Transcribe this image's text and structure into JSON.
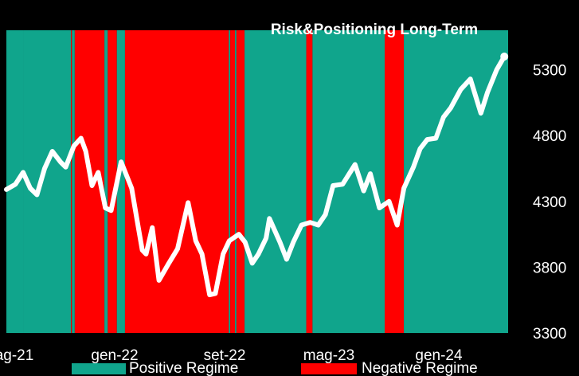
{
  "chart_data": {
    "type": "line",
    "title": "Risk&Positioning Long-Term",
    "x_tick_labels": [
      "ag-21",
      "gen-22",
      "set-22",
      "mag-23",
      "gen-24"
    ],
    "y_ticks": [
      3300,
      3800,
      4300,
      4800,
      5300
    ],
    "ylim": [
      3300,
      5600
    ],
    "xlim": [
      "2021-08-01",
      "2024-06-15"
    ],
    "grid": false,
    "legend_position": "bottom",
    "colors": {
      "positive": "#10a58c",
      "negative": "#ff0000",
      "line": "#ffffff",
      "background": "#000000",
      "page": "#fcefd2"
    },
    "series": [
      {
        "name": "",
        "x": [
          "2021-08-01",
          "2021-08-20",
          "2021-09-05",
          "2021-09-20",
          "2021-10-04",
          "2021-10-20",
          "2021-11-05",
          "2021-11-22",
          "2021-12-03",
          "2021-12-20",
          "2022-01-04",
          "2022-01-14",
          "2022-01-27",
          "2022-02-09",
          "2022-02-24",
          "2022-03-08",
          "2022-03-29",
          "2022-04-20",
          "2022-05-02",
          "2022-05-12",
          "2022-05-20",
          "2022-06-02",
          "2022-06-16",
          "2022-07-05",
          "2022-07-25",
          "2022-08-16",
          "2022-09-01",
          "2022-09-14",
          "2022-09-30",
          "2022-10-12",
          "2022-10-28",
          "2022-11-10",
          "2022-11-30",
          "2022-12-13",
          "2022-12-28",
          "2023-01-10",
          "2023-01-26",
          "2023-02-02",
          "2023-02-24",
          "2023-03-10",
          "2023-03-24",
          "2023-04-10",
          "2023-04-28",
          "2023-05-15",
          "2023-05-30",
          "2023-06-15",
          "2023-07-05",
          "2023-07-31",
          "2023-08-18",
          "2023-09-01",
          "2023-09-20",
          "2023-10-10",
          "2023-10-27",
          "2023-11-10",
          "2023-11-30",
          "2023-12-14",
          "2023-12-29",
          "2024-01-16",
          "2024-02-01",
          "2024-02-16",
          "2024-03-08",
          "2024-03-28",
          "2024-04-19",
          "2024-05-03",
          "2024-05-22",
          "2024-06-07"
        ],
        "values": [
          4390,
          4430,
          4520,
          4400,
          4350,
          4550,
          4680,
          4600,
          4560,
          4720,
          4780,
          4680,
          4420,
          4520,
          4250,
          4230,
          4600,
          4400,
          4140,
          3930,
          3900,
          4100,
          3700,
          3820,
          3940,
          4290,
          4000,
          3900,
          3590,
          3600,
          3900,
          4000,
          4050,
          3990,
          3830,
          3900,
          4020,
          4170,
          3990,
          3860,
          3990,
          4120,
          4140,
          4120,
          4200,
          4420,
          4430,
          4580,
          4380,
          4510,
          4250,
          4300,
          4120,
          4400,
          4560,
          4700,
          4770,
          4780,
          4940,
          5010,
          5150,
          5230,
          4970,
          5130,
          5300,
          5400
        ]
      }
    ],
    "regimes": [
      {
        "start": "2021-08-01",
        "end": "2021-09-05",
        "regime": "positive"
      },
      {
        "start": "2021-09-05",
        "end": "2021-12-14",
        "regime": "positive"
      },
      {
        "start": "2021-12-14",
        "end": "2021-12-16",
        "regime": "negative"
      },
      {
        "start": "2021-12-16",
        "end": "2021-12-22",
        "regime": "positive"
      },
      {
        "start": "2021-12-22",
        "end": "2022-02-22",
        "regime": "negative"
      },
      {
        "start": "2022-02-22",
        "end": "2022-03-01",
        "regime": "positive"
      },
      {
        "start": "2022-03-01",
        "end": "2022-03-20",
        "regime": "negative"
      },
      {
        "start": "2022-03-20",
        "end": "2022-04-06",
        "regime": "positive"
      },
      {
        "start": "2022-04-06",
        "end": "2022-11-09",
        "regime": "negative"
      },
      {
        "start": "2022-11-09",
        "end": "2022-11-12",
        "regime": "positive"
      },
      {
        "start": "2022-11-12",
        "end": "2022-11-22",
        "regime": "negative"
      },
      {
        "start": "2022-11-22",
        "end": "2022-11-25",
        "regime": "positive"
      },
      {
        "start": "2022-11-25",
        "end": "2022-12-12",
        "regime": "negative"
      },
      {
        "start": "2022-12-12",
        "end": "2023-04-20",
        "regime": "positive"
      },
      {
        "start": "2023-04-20",
        "end": "2023-05-03",
        "regime": "negative"
      },
      {
        "start": "2023-05-03",
        "end": "2023-10-01",
        "regime": "positive"
      },
      {
        "start": "2023-10-01",
        "end": "2023-11-10",
        "regime": "negative"
      },
      {
        "start": "2023-11-10",
        "end": "2024-06-15",
        "regime": "positive"
      }
    ],
    "legend": [
      {
        "label": "Positive Regime",
        "color_key": "positive"
      },
      {
        "label": "Negative Regime",
        "color_key": "negative"
      }
    ]
  }
}
